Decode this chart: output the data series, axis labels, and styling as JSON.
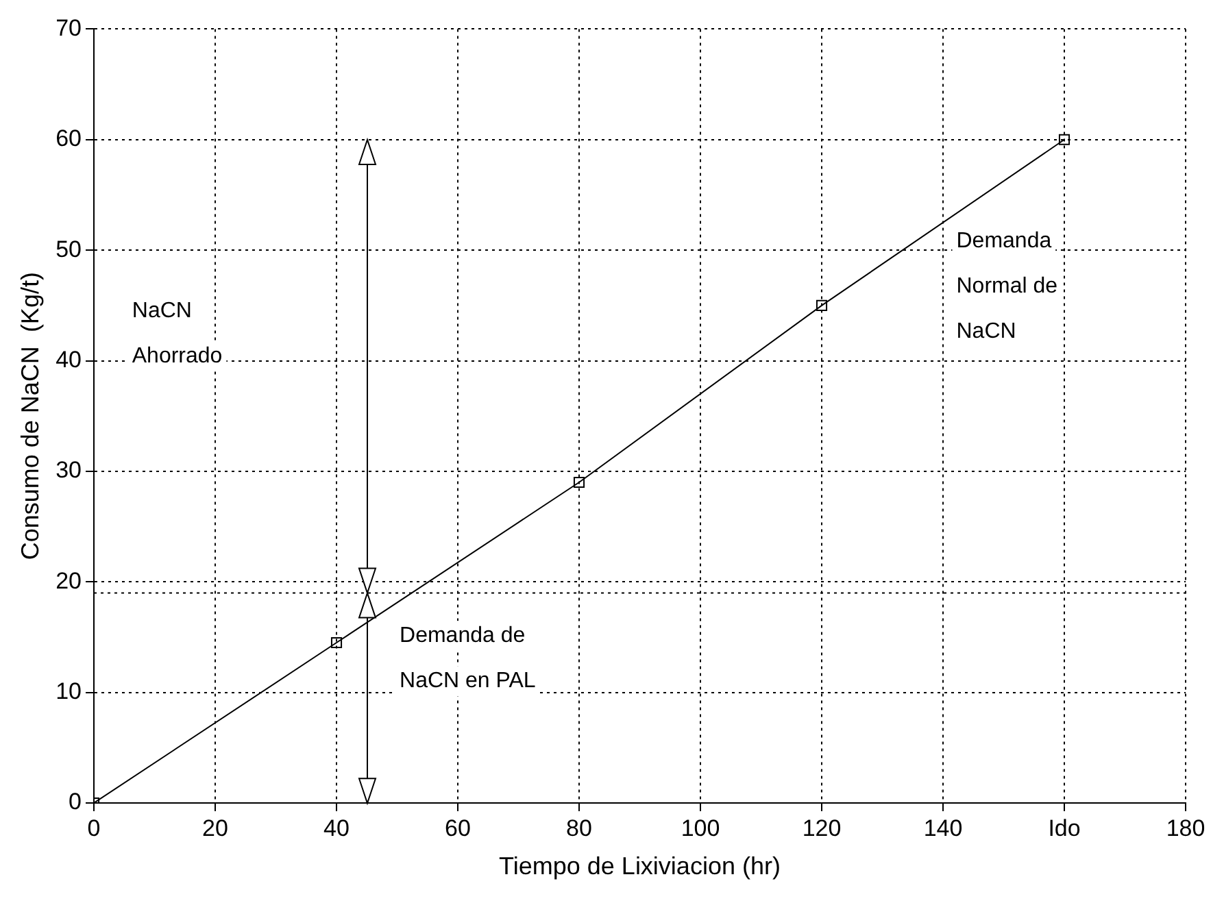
{
  "chart_data": {
    "type": "line",
    "xlabel": "Tiempo de Lixiviacion (hr)",
    "ylabel": "Consumo de NaCN  (Kg/t)",
    "x": [
      0,
      40,
      80,
      120,
      160
    ],
    "series": [
      {
        "color": "#000000",
        "values": [
          0,
          14.5,
          29,
          45,
          60
        ]
      }
    ],
    "marker": "square",
    "line_style": "solid",
    "grid": true,
    "legend": false,
    "xlim": [
      0,
      180
    ],
    "xticks": [
      0,
      20,
      40,
      60,
      80,
      100,
      120,
      140,
      {
        "value": 160,
        "label": "Ido"
      },
      180
    ],
    "ylim": [
      0,
      70
    ],
    "yticks": [
      0,
      10,
      20,
      30,
      40,
      50,
      60,
      70
    ],
    "ref_lines": [
      {
        "axis": "y",
        "value": 19,
        "line_style": "dotted"
      }
    ],
    "annotations": [
      "NaCN\nAhorrado",
      "Demanda\nNormal de\nNaCN",
      "Demanda de\nNaCN en PAL"
    ]
  }
}
